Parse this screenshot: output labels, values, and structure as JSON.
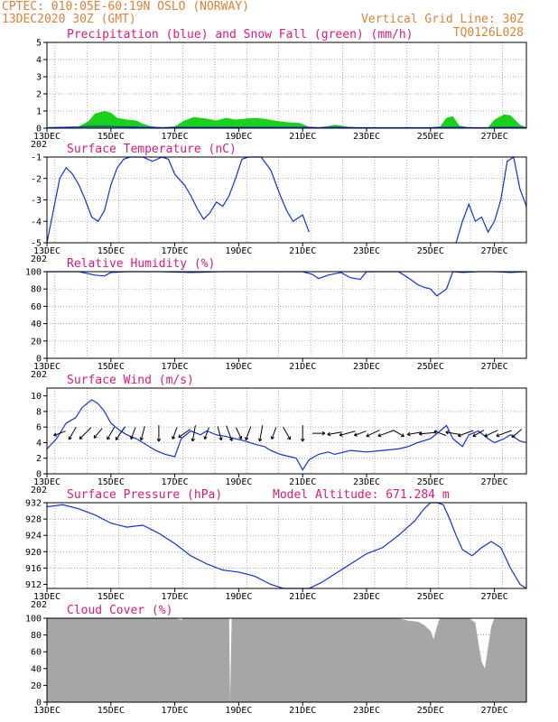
{
  "header": {
    "line1_left": "CPTEC: 010:05E-60:19N  OSLO (NORWAY)",
    "line2_left": "13DEC2020 30Z (GMT)",
    "line2_right": "Vertical Grid Line: 30Z",
    "line3_right": "TQ0126L028"
  },
  "x_axis": {
    "labels": [
      "13DEC",
      "15DEC",
      "17DEC",
      "19DEC",
      "21DEC",
      "23DEC",
      "25DEC",
      "27DEC"
    ],
    "clipped_label": "202"
  },
  "colors": {
    "title": "#e0187a",
    "header": "#e0803a",
    "line": "#1030e0",
    "snow": "#19d119",
    "cloud": "#a6a6a6",
    "arrow": "#000000"
  },
  "chart_data": [
    {
      "type": "area",
      "title": "Precipitation (blue) and Snow Fall (green) (mm/h)",
      "ylim": [
        0,
        5
      ],
      "yticks": [
        "0",
        "1",
        "2",
        "3",
        "4",
        "5"
      ],
      "grid": "dotted",
      "x": [
        13.0,
        13.5,
        14.0,
        14.3,
        14.5,
        14.8,
        15.0,
        15.2,
        15.5,
        15.8,
        16.0,
        16.3,
        16.6,
        17.0,
        17.3,
        17.6,
        17.8,
        18.0,
        18.3,
        18.6,
        18.9,
        19.2,
        19.5,
        19.8,
        20.1,
        20.5,
        20.9,
        21.2,
        21.5,
        21.8,
        22.0,
        22.2,
        22.4,
        22.7,
        23.0,
        23.4,
        23.8,
        24.2,
        24.6,
        25.0,
        25.3,
        25.5,
        25.7,
        25.9,
        26.2,
        26.5,
        26.8,
        27.0,
        27.3,
        27.5,
        27.8,
        28.0
      ],
      "series": [
        {
          "name": "Snow Fall",
          "values": [
            0.05,
            0.08,
            0.1,
            0.4,
            0.85,
            1.0,
            0.9,
            0.6,
            0.5,
            0.45,
            0.25,
            0.1,
            0.05,
            0.1,
            0.45,
            0.65,
            0.6,
            0.55,
            0.45,
            0.6,
            0.5,
            0.55,
            0.6,
            0.55,
            0.45,
            0.35,
            0.3,
            0.08,
            0.05,
            0.12,
            0.2,
            0.15,
            0.08,
            0.05,
            0.05,
            0.05,
            0.05,
            0.05,
            0.05,
            0.05,
            0.1,
            0.6,
            0.7,
            0.15,
            0.05,
            0.05,
            0.05,
            0.5,
            0.8,
            0.75,
            0.2,
            0.05
          ]
        },
        {
          "name": "Precipitation",
          "values": [
            0.03,
            0.05,
            0.07,
            0.1,
            0.1,
            0.1,
            0.1,
            0.08,
            0.08,
            0.06,
            0.05,
            0.05,
            0.03,
            0.05,
            0.05,
            0.05,
            0.05,
            0.05,
            0.05,
            0.05,
            0.05,
            0.05,
            0.05,
            0.05,
            0.05,
            0.05,
            0.05,
            0.05,
            0.03,
            0.05,
            0.05,
            0.05,
            0.04,
            0.03,
            0.03,
            0.03,
            0.03,
            0.03,
            0.03,
            0.03,
            0.04,
            0.05,
            0.05,
            0.05,
            0.03,
            0.03,
            0.03,
            0.05,
            0.05,
            0.05,
            0.05,
            0.03
          ]
        }
      ]
    },
    {
      "type": "line",
      "title": "Surface Temperature (nC)",
      "ylim": [
        -5,
        -1
      ],
      "yticks": [
        "-5",
        "-4",
        "-3",
        "-2",
        "-1"
      ],
      "grid": "dotted",
      "x": [
        13.0,
        13.2,
        13.4,
        13.6,
        13.8,
        14.0,
        14.2,
        14.4,
        14.6,
        14.8,
        15.0,
        15.2,
        15.4,
        15.6,
        15.8,
        16.0,
        16.3,
        16.6,
        16.8,
        17.0,
        17.3,
        17.5,
        17.7,
        17.9,
        18.1,
        18.3,
        18.5,
        18.7,
        18.9,
        19.1,
        19.3,
        19.5,
        19.7,
        20.0,
        20.3,
        20.5,
        20.7,
        21.0,
        21.2
      ],
      "series": [
        {
          "name": "Temperature",
          "values": [
            -5.0,
            -3.5,
            -2.0,
            -1.5,
            -1.8,
            -2.3,
            -3.0,
            -3.8,
            -4.0,
            -3.5,
            -2.3,
            -1.5,
            -1.1,
            -1.0,
            -1.0,
            -1.0,
            -1.2,
            -1.0,
            -1.1,
            -1.8,
            -2.3,
            -2.8,
            -3.4,
            -3.9,
            -3.6,
            -3.1,
            -3.3,
            -2.8,
            -2.0,
            -1.1,
            -1.0,
            -1.0,
            -1.0,
            -1.6,
            -2.8,
            -3.5,
            -4.0,
            -3.7,
            -4.5
          ]
        },
        {
          "name": "Temperature",
          "x": [
            25.8,
            26.0,
            26.2,
            26.4,
            26.6,
            26.8,
            27.0,
            27.2,
            27.4,
            27.6,
            27.8,
            28.0
          ],
          "values": [
            -5.0,
            -4.0,
            -3.2,
            -4.0,
            -3.8,
            -4.5,
            -4.0,
            -3.0,
            -1.2,
            -1.0,
            -2.5,
            -3.3
          ]
        }
      ]
    },
    {
      "type": "line",
      "title": "Relative Humidity (%)",
      "ylim": [
        0,
        100
      ],
      "yticks": [
        "0",
        "20",
        "40",
        "60",
        "80",
        "100"
      ],
      "grid": "dotted",
      "x": [
        13.0,
        14.0,
        14.5,
        14.8,
        15.0,
        15.5,
        16.5,
        17.5,
        18.5,
        19.5,
        20.5,
        21.0,
        21.3,
        21.5,
        21.8,
        22.2,
        22.5,
        22.8,
        23.0,
        23.5,
        24.0,
        24.3,
        24.6,
        24.8,
        25.0,
        25.2,
        25.5,
        25.7,
        26.0,
        26.5,
        27.0,
        27.5,
        28.0
      ],
      "series": [
        {
          "name": "Relative Humidity",
          "values": [
            100,
            100,
            96,
            95,
            99,
            100,
            100,
            99,
            100,
            100,
            100,
            100,
            97,
            92,
            96,
            99,
            93,
            91,
            100,
            100,
            100,
            93,
            85,
            82,
            80,
            72,
            80,
            100,
            99,
            100,
            100,
            99,
            100
          ]
        }
      ]
    },
    {
      "type": "line",
      "title": "Surface Wind (m/s)",
      "ylim": [
        0,
        11
      ],
      "yticks": [
        "0",
        "2",
        "4",
        "6",
        "8",
        "10"
      ],
      "grid": "dotted",
      "x": [
        13.0,
        13.3,
        13.6,
        13.9,
        14.1,
        14.4,
        14.6,
        14.8,
        15.0,
        15.3,
        15.5,
        15.8,
        16.0,
        16.4,
        16.7,
        17.0,
        17.2,
        17.5,
        17.8,
        18.0,
        18.3,
        18.6,
        18.9,
        19.2,
        19.5,
        19.8,
        20.0,
        20.3,
        20.6,
        20.8,
        21.0,
        21.2,
        21.5,
        21.8,
        22.0,
        22.5,
        23.0,
        23.5,
        24.0,
        24.3,
        24.6,
        25.0,
        25.3,
        25.5,
        25.7,
        26.0,
        26.2,
        26.5,
        26.8,
        27.0,
        27.3,
        27.5,
        27.8,
        28.0
      ],
      "series": [
        {
          "name": "Wind Speed",
          "values": [
            3.2,
            4.5,
            6.5,
            7.2,
            8.5,
            9.5,
            9.0,
            8.0,
            6.5,
            5.5,
            5.0,
            4.5,
            4.0,
            3.0,
            2.5,
            2.2,
            4.5,
            5.5,
            5.0,
            5.5,
            5.0,
            4.8,
            4.5,
            4.2,
            3.8,
            3.5,
            3.0,
            2.5,
            2.2,
            2.0,
            0.5,
            1.8,
            2.5,
            2.8,
            2.5,
            3.0,
            2.8,
            3.0,
            3.2,
            3.5,
            4.0,
            4.5,
            5.5,
            6.2,
            4.5,
            3.5,
            5.0,
            5.5,
            4.5,
            4.0,
            4.5,
            5.0,
            4.2,
            4.0
          ]
        }
      ]
    },
    {
      "type": "line",
      "title": "Surface Pressure (hPa)",
      "annotation": "Model Altitude: 671.284  m",
      "ylim": [
        911,
        932
      ],
      "yticks": [
        "912",
        "916",
        "920",
        "924",
        "928",
        "932"
      ],
      "grid": "dotted",
      "x": [
        13.0,
        13.5,
        14.0,
        14.5,
        15.0,
        15.5,
        16.0,
        16.5,
        17.0,
        17.5,
        18.0,
        18.5,
        19.0,
        19.5,
        20.0,
        20.4,
        20.8,
        21.2,
        21.6,
        22.0,
        22.5,
        23.0,
        23.5,
        24.0,
        24.5,
        24.8,
        25.0,
        25.2,
        25.4,
        25.6,
        25.8,
        26.0,
        26.3,
        26.6,
        26.9,
        27.2,
        27.5,
        27.8,
        28.0
      ],
      "series": [
        {
          "name": "Surface Pressure",
          "values": [
            931,
            931.5,
            930.5,
            929,
            927,
            926,
            926.5,
            924.5,
            922,
            919,
            917,
            915.5,
            915,
            914,
            912,
            910,
            908.5,
            911,
            912.5,
            914.5,
            917,
            919.5,
            921,
            924,
            927.5,
            930.5,
            932,
            933,
            931.5,
            928,
            924,
            920.5,
            919,
            921,
            922.5,
            921,
            916,
            912,
            911
          ]
        }
      ]
    },
    {
      "type": "area",
      "title": "Cloud Cover (%)",
      "ylim": [
        0,
        100
      ],
      "yticks": [
        "0",
        "20",
        "40",
        "60",
        "80",
        "100"
      ],
      "grid": "dotted",
      "x": [
        13.0,
        17.0,
        17.2,
        17.3,
        18.0,
        18.7,
        18.73,
        18.78,
        19.0,
        24.0,
        24.3,
        24.6,
        24.8,
        25.0,
        25.1,
        25.2,
        25.3,
        25.6,
        25.9,
        26.2,
        26.4,
        26.5,
        26.6,
        26.7,
        26.8,
        26.9,
        27.0,
        27.5,
        28.0
      ],
      "series": [
        {
          "name": "Cloud Cover",
          "values": [
            100,
            100,
            98,
            100,
            100,
            100,
            0,
            100,
            100,
            100,
            97,
            96,
            92,
            85,
            75,
            90,
            100,
            100,
            100,
            100,
            95,
            70,
            48,
            40,
            65,
            90,
            100,
            100,
            100
          ]
        }
      ]
    }
  ]
}
